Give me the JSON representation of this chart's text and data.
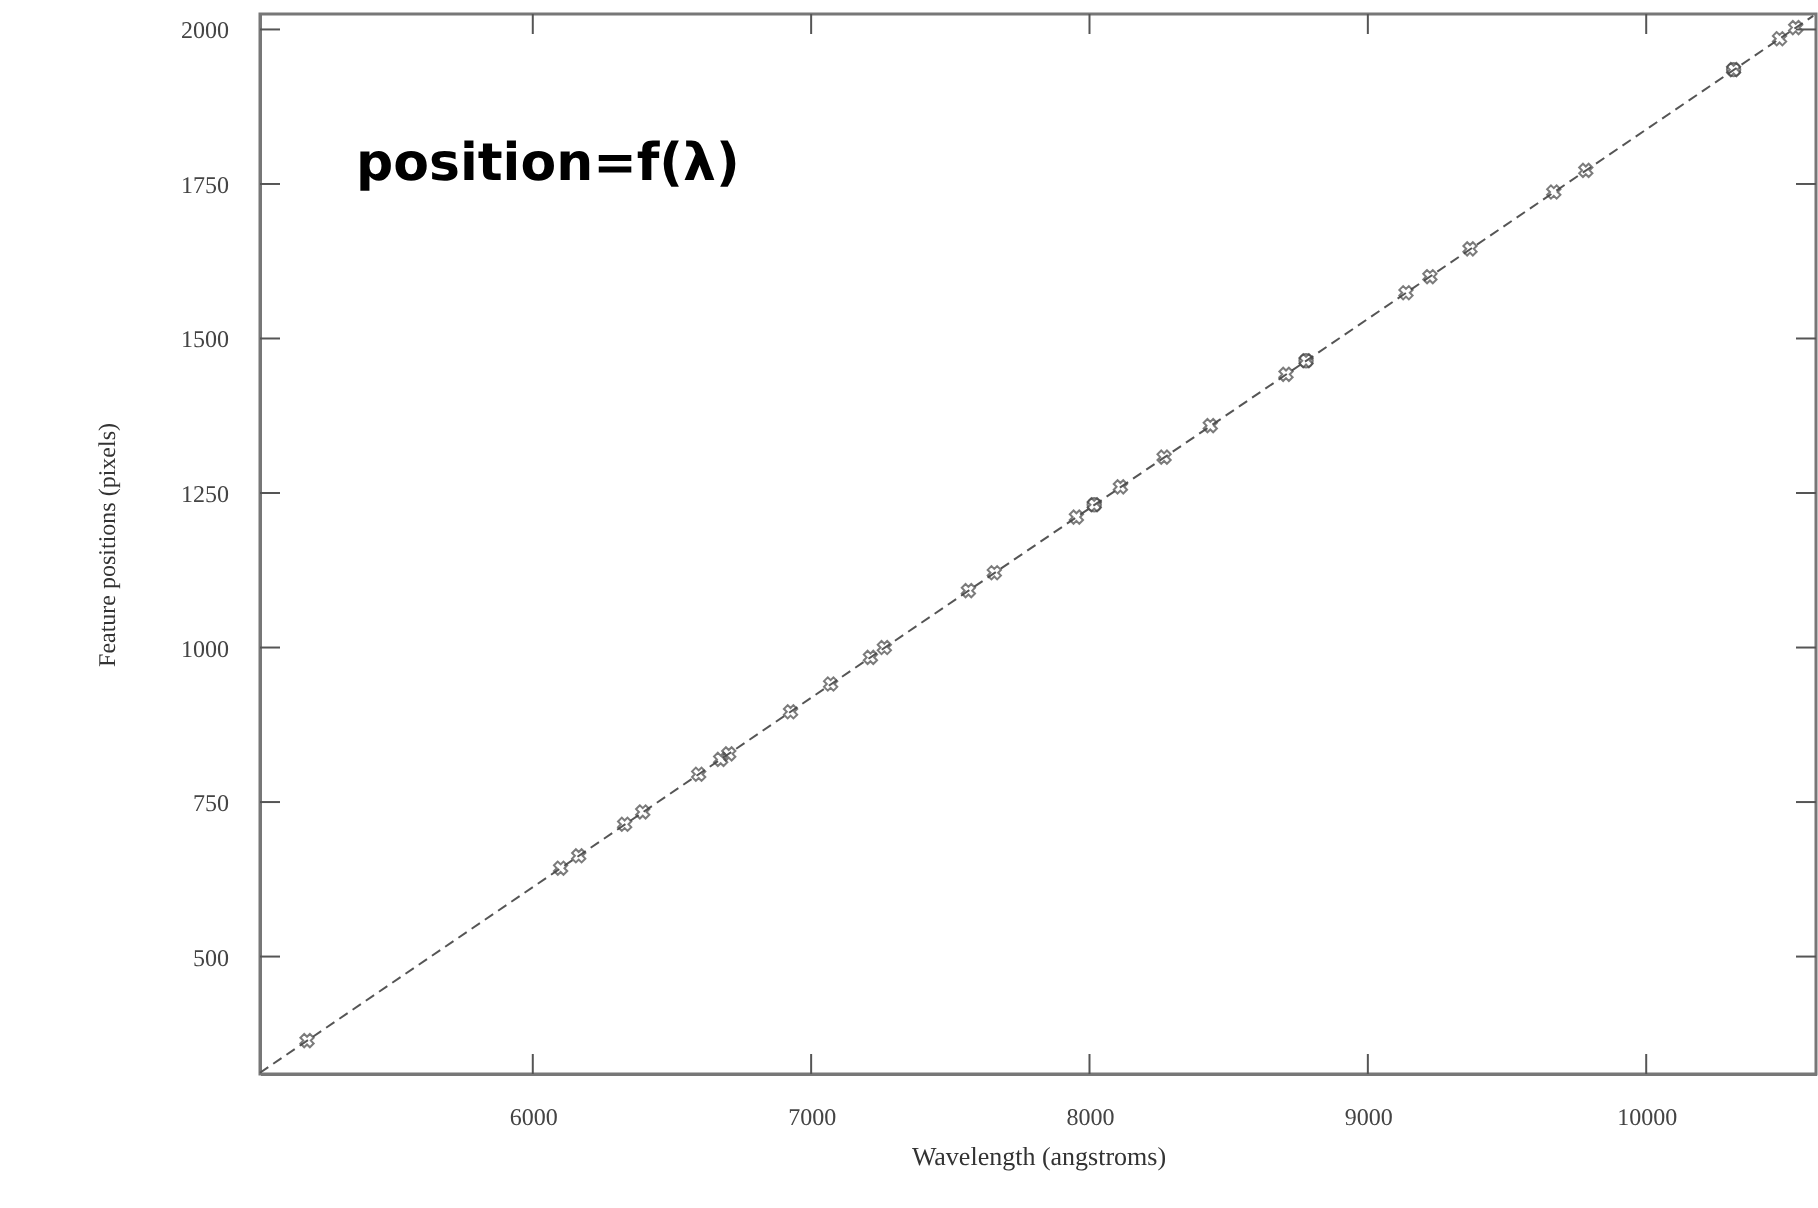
{
  "chart_data": {
    "type": "scatter",
    "xlabel": "Wavelength (angstroms)",
    "ylabel": "Feature positions (pixels)",
    "annotations": [
      "position=f(λ)"
    ],
    "xlim": [
      5020,
      10610
    ],
    "ylim": [
      310,
      2025
    ],
    "xticks": [
      6000,
      7000,
      8000,
      9000,
      10000
    ],
    "yticks": [
      500,
      750,
      1000,
      1250,
      1500,
      1750,
      2000
    ],
    "grid": false,
    "series": [
      {
        "type": "line",
        "color": "#555555",
        "line_style": "dashed",
        "marker": "none",
        "x": [
          5020,
          10600
        ],
        "values": [
          312,
          2022
        ]
      },
      {
        "color": "#444444",
        "marker": "cross",
        "x": [
          5189,
          6100,
          6165,
          6330,
          6395,
          6596,
          6675,
          6704,
          6926,
          7070,
          7213,
          7263,
          7565,
          7658,
          7953,
          8017,
          8111,
          8268,
          8434,
          8706,
          8778,
          9137,
          9223,
          9367,
          9668,
          9783,
          10314,
          10479,
          10537
        ],
        "values": [
          364,
          643,
          663,
          714,
          734,
          795,
          819,
          828,
          896,
          941,
          984,
          1000,
          1092,
          1121,
          1211,
          1231,
          1260,
          1308,
          1359,
          1442,
          1464,
          1574,
          1600,
          1645,
          1737,
          1772,
          1935,
          1985,
          2003
        ]
      },
      {
        "color": "#444444",
        "marker": "circle",
        "x": [
          8017,
          8778,
          10314
        ],
        "values": [
          1231,
          1464,
          1935
        ]
      }
    ]
  }
}
